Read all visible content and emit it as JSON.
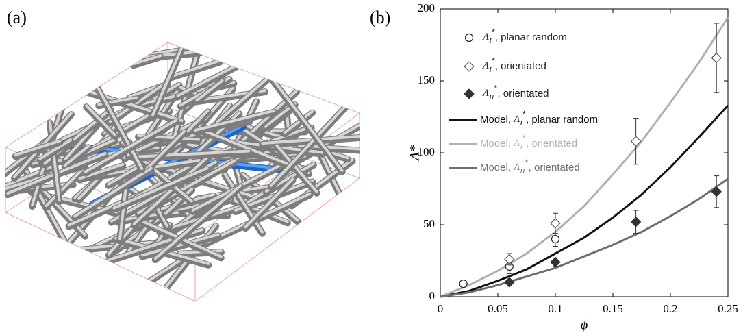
{
  "panel_labels": [
    "(a)",
    "(b)"
  ],
  "chart_data": {
    "type": "scatter",
    "x_label": "ϕ",
    "y_label": "Λ*",
    "xlim": [
      0,
      0.25
    ],
    "ylim": [
      0,
      200
    ],
    "xticks": [
      0,
      0.05,
      0.1,
      0.15,
      0.2,
      0.25
    ],
    "yticks": [
      0,
      50,
      100,
      150,
      200
    ],
    "grid": false,
    "legend": "upper left",
    "series": [
      {
        "name": "ΛI*, planar random",
        "type": "scatter",
        "marker": "circle",
        "filled": false,
        "color": "#222222",
        "x": [
          0.02,
          0.06,
          0.1
        ],
        "values": [
          9,
          21,
          40
        ],
        "errors": [
          2,
          5,
          5
        ]
      },
      {
        "name": "ΛI*, orientated",
        "type": "scatter",
        "marker": "diamond",
        "filled": false,
        "color": "#555555",
        "x": [
          0.06,
          0.1,
          0.17,
          0.24
        ],
        "values": [
          26,
          51,
          108,
          166
        ],
        "errors": [
          4,
          7,
          16,
          24
        ]
      },
      {
        "name": "ΛII*, orientated",
        "type": "scatter",
        "marker": "diamond",
        "filled": true,
        "color": "#333333",
        "x": [
          0.06,
          0.1,
          0.17,
          0.24
        ],
        "values": [
          10,
          24,
          52,
          73
        ],
        "errors": [
          1,
          3,
          8,
          11
        ]
      },
      {
        "name": "Model, ΛI*, planar random",
        "type": "line",
        "color": "#111111",
        "x": [
          0,
          0.025,
          0.05,
          0.075,
          0.1,
          0.125,
          0.15,
          0.175,
          0.2,
          0.225,
          0.25
        ],
        "values": [
          0,
          4,
          11,
          19,
          30,
          41,
          55,
          71,
          90,
          111,
          133
        ]
      },
      {
        "name": "Model, ΛI*, orientated",
        "type": "line",
        "color": "#b0b0b0",
        "x": [
          0,
          0.025,
          0.05,
          0.075,
          0.1,
          0.125,
          0.15,
          0.175,
          0.2,
          0.225,
          0.25
        ],
        "values": [
          0,
          8,
          18,
          30,
          45,
          63,
          85,
          108,
          135,
          163,
          194
        ]
      },
      {
        "name": "Model, ΛII*, orientated",
        "type": "line",
        "color": "#6e6e6e",
        "x": [
          0,
          0.025,
          0.05,
          0.075,
          0.1,
          0.125,
          0.15,
          0.175,
          0.2,
          0.225,
          0.25
        ],
        "values": [
          0,
          3,
          8,
          14,
          20,
          28,
          36,
          45,
          56,
          68,
          82
        ]
      }
    ]
  }
}
